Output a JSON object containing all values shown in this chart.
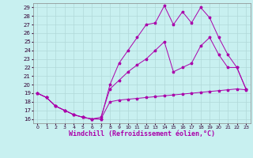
{
  "background_color": "#c8f0f0",
  "grid_color": "#b0d8d8",
  "line_color": "#aa00aa",
  "marker": "*",
  "marker_size": 2.5,
  "xlabel": "Windchill (Refroidissement éolien,°C)",
  "xlabel_fontsize": 6,
  "xtick_fontsize": 4.5,
  "ytick_fontsize": 5,
  "xlim": [
    -0.5,
    23.5
  ],
  "ylim": [
    15.5,
    29.5
  ],
  "yticks": [
    16,
    17,
    18,
    19,
    20,
    21,
    22,
    23,
    24,
    25,
    26,
    27,
    28,
    29
  ],
  "xticks": [
    0,
    1,
    2,
    3,
    4,
    5,
    6,
    7,
    8,
    9,
    10,
    11,
    12,
    13,
    14,
    15,
    16,
    17,
    18,
    19,
    20,
    21,
    22,
    23
  ],
  "line1_x": [
    0,
    1,
    2,
    3,
    4,
    5,
    6,
    7,
    8,
    9,
    10,
    11,
    12,
    13,
    14,
    15,
    16,
    17,
    18,
    19,
    20,
    21,
    22,
    23
  ],
  "line1_y": [
    19.0,
    18.5,
    17.5,
    17.0,
    16.5,
    16.2,
    16.0,
    16.0,
    18.0,
    18.2,
    18.3,
    18.4,
    18.5,
    18.6,
    18.7,
    18.8,
    18.9,
    19.0,
    19.1,
    19.2,
    19.3,
    19.4,
    19.5,
    19.4
  ],
  "line2_x": [
    0,
    1,
    2,
    3,
    4,
    5,
    6,
    7,
    8,
    9,
    10,
    11,
    12,
    13,
    14,
    15,
    16,
    17,
    18,
    19,
    20,
    21,
    22,
    23
  ],
  "line2_y": [
    19.0,
    18.5,
    17.5,
    17.0,
    16.5,
    16.2,
    16.0,
    16.0,
    20.0,
    22.5,
    24.0,
    25.5,
    27.0,
    27.2,
    29.2,
    27.0,
    28.5,
    27.2,
    29.0,
    27.8,
    25.5,
    23.5,
    22.0,
    19.5
  ],
  "line3_x": [
    0,
    1,
    2,
    3,
    4,
    5,
    6,
    7,
    8,
    9,
    10,
    11,
    12,
    13,
    14,
    15,
    16,
    17,
    18,
    19,
    20,
    21,
    22,
    23
  ],
  "line3_y": [
    19.0,
    18.5,
    17.5,
    17.0,
    16.5,
    16.2,
    16.0,
    16.2,
    19.5,
    20.5,
    21.5,
    22.3,
    23.0,
    24.0,
    25.0,
    21.5,
    22.0,
    22.5,
    24.5,
    25.5,
    23.5,
    22.0,
    22.0,
    19.5
  ]
}
